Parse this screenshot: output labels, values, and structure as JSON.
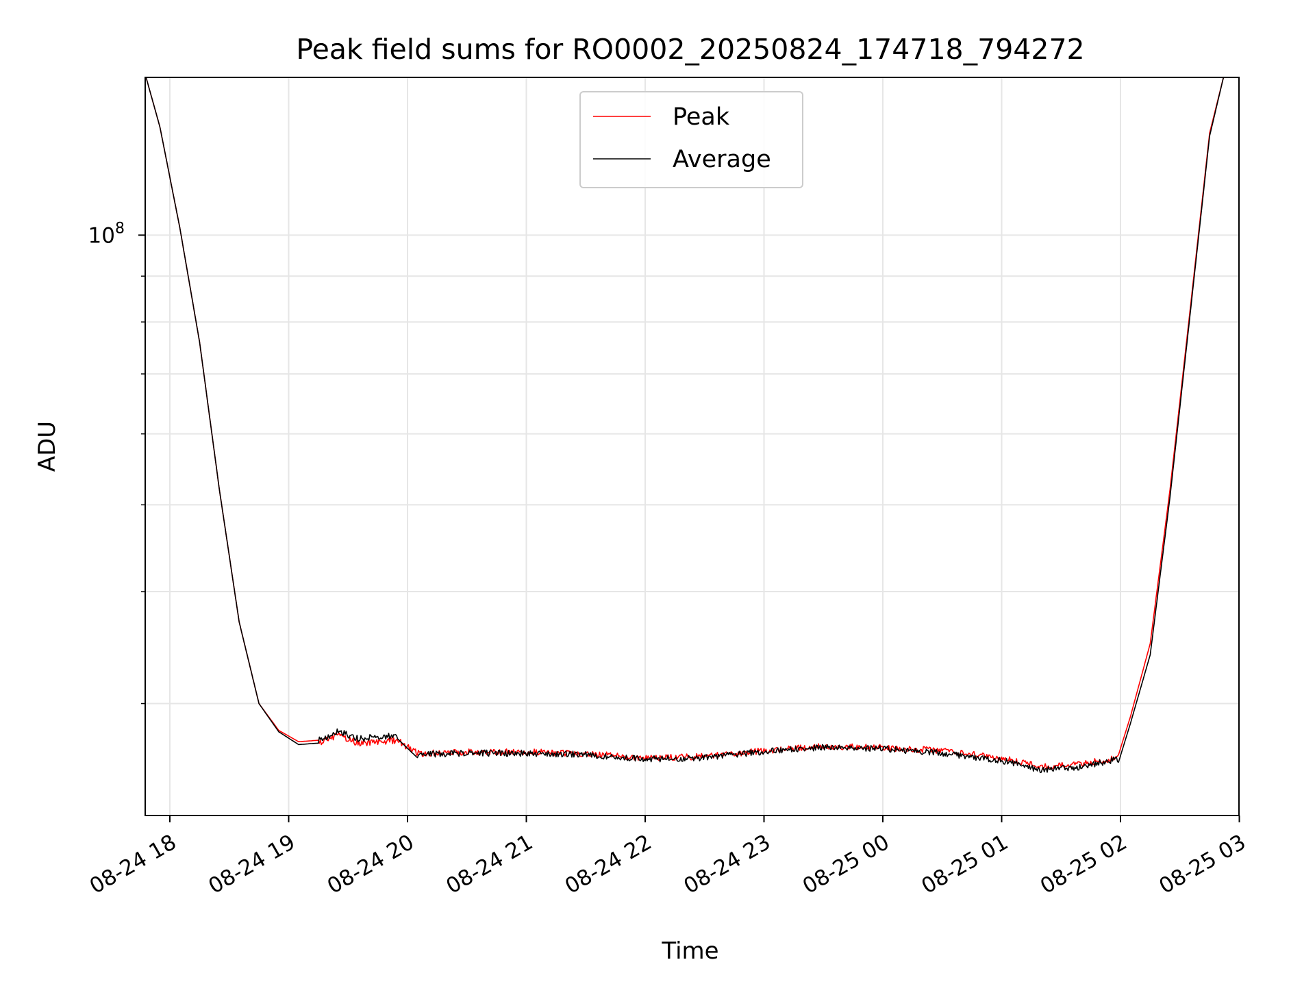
{
  "chart_data": {
    "type": "line",
    "title": "Peak field sums for RO0002_20250824_174718_794272",
    "xlabel": "Time",
    "ylabel": "ADU",
    "y_scale": "log",
    "x_ticks": [
      "08-24 18",
      "08-24 19",
      "08-24 20",
      "08-24 21",
      "08-24 22",
      "08-24 23",
      "08-25 00",
      "08-25 01",
      "08-25 02",
      "08-25 03"
    ],
    "x_range": [
      "2025-08-24 17:48",
      "2025-08-25 02:58"
    ],
    "y_range": [
      22500000,
      150000000
    ],
    "y_major_ticks": [
      {
        "value": 100000000,
        "base": "10",
        "exponent": "8"
      }
    ],
    "y_minor_ticks": [
      30000000,
      40000000,
      50000000,
      60000000,
      70000000,
      80000000,
      90000000,
      200000000
    ],
    "grid": true,
    "legend": {
      "placement": "upper center"
    },
    "series": [
      {
        "name": "Peak",
        "color": "#ff0000",
        "points": [
          [
            "2025-08-24 17:48",
            150000000
          ],
          [
            "2025-08-24 17:55",
            132000000
          ],
          [
            "2025-08-24 18:05",
            102000000
          ],
          [
            "2025-08-24 18:15",
            76000000
          ],
          [
            "2025-08-24 18:25",
            52000000
          ],
          [
            "2025-08-24 18:35",
            37000000
          ],
          [
            "2025-08-24 18:45",
            30000000
          ],
          [
            "2025-08-24 18:55",
            28000000
          ],
          [
            "2025-08-24 19:05",
            27200000
          ],
          [
            "2025-08-24 19:15",
            27300000
          ],
          [
            "2025-08-24 19:25",
            27900000
          ],
          [
            "2025-08-24 19:35",
            27300000
          ],
          [
            "2025-08-24 19:45",
            27400000
          ],
          [
            "2025-08-24 19:55",
            27500000
          ],
          [
            "2025-08-24 20:05",
            26600000
          ],
          [
            "2025-08-24 20:30",
            26700000
          ],
          [
            "2025-08-24 21:00",
            26700000
          ],
          [
            "2025-08-24 21:30",
            26600000
          ],
          [
            "2025-08-24 22:00",
            26300000
          ],
          [
            "2025-08-24 22:30",
            26400000
          ],
          [
            "2025-08-24 23:00",
            26800000
          ],
          [
            "2025-08-24 23:30",
            27100000
          ],
          [
            "2025-08-25 00:00",
            27000000
          ],
          [
            "2025-08-25 00:30",
            26800000
          ],
          [
            "2025-08-25 01:00",
            26300000
          ],
          [
            "2025-08-25 01:20",
            25700000
          ],
          [
            "2025-08-25 01:40",
            25900000
          ],
          [
            "2025-08-25 01:59",
            26300000
          ],
          [
            "2025-08-25 02:05",
            29000000
          ],
          [
            "2025-08-25 02:15",
            35000000
          ],
          [
            "2025-08-25 02:25",
            52000000
          ],
          [
            "2025-08-25 02:35",
            82000000
          ],
          [
            "2025-08-25 02:45",
            130000000
          ],
          [
            "2025-08-25 02:52",
            150000000
          ],
          [
            "2025-08-25 02:58",
            150000000
          ]
        ]
      },
      {
        "name": "Average",
        "color": "#000000",
        "points": [
          [
            "2025-08-24 17:48",
            150000000
          ],
          [
            "2025-08-24 17:55",
            132000000
          ],
          [
            "2025-08-24 18:05",
            102000000
          ],
          [
            "2025-08-24 18:15",
            76000000
          ],
          [
            "2025-08-24 18:25",
            52000000
          ],
          [
            "2025-08-24 18:35",
            37000000
          ],
          [
            "2025-08-24 18:45",
            30000000
          ],
          [
            "2025-08-24 18:55",
            27900000
          ],
          [
            "2025-08-24 19:05",
            27000000
          ],
          [
            "2025-08-24 19:15",
            27100000
          ],
          [
            "2025-08-24 19:25",
            27700000
          ],
          [
            "2025-08-24 19:35",
            27200000
          ],
          [
            "2025-08-24 19:45",
            27300000
          ],
          [
            "2025-08-24 19:55",
            27400000
          ],
          [
            "2025-08-24 20:05",
            26100000
          ],
          [
            "2025-08-24 20:30",
            26200000
          ],
          [
            "2025-08-24 21:00",
            26200000
          ],
          [
            "2025-08-24 21:30",
            26100000
          ],
          [
            "2025-08-24 22:00",
            25800000
          ],
          [
            "2025-08-24 22:30",
            25900000
          ],
          [
            "2025-08-24 23:00",
            26300000
          ],
          [
            "2025-08-24 23:30",
            26600000
          ],
          [
            "2025-08-25 00:00",
            26500000
          ],
          [
            "2025-08-25 00:30",
            26200000
          ],
          [
            "2025-08-25 01:00",
            25700000
          ],
          [
            "2025-08-25 01:20",
            25100000
          ],
          [
            "2025-08-25 01:40",
            25300000
          ],
          [
            "2025-08-25 01:59",
            25800000
          ],
          [
            "2025-08-25 02:05",
            28500000
          ],
          [
            "2025-08-25 02:15",
            34000000
          ],
          [
            "2025-08-25 02:25",
            51000000
          ],
          [
            "2025-08-25 02:35",
            81000000
          ],
          [
            "2025-08-25 02:45",
            129000000
          ],
          [
            "2025-08-25 02:52",
            150000000
          ],
          [
            "2025-08-25 02:58",
            150000000
          ]
        ]
      }
    ]
  }
}
